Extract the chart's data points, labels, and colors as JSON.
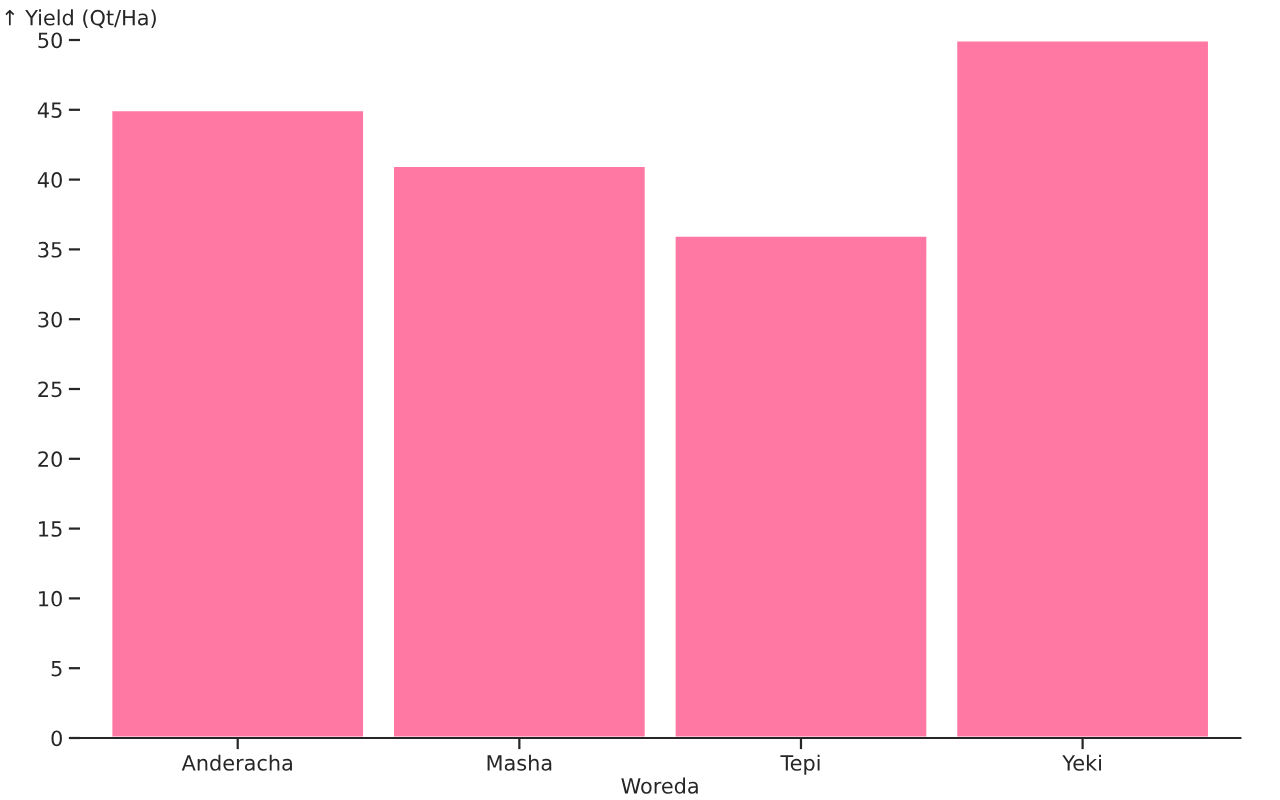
{
  "chart_data": {
    "type": "bar",
    "xlabel": "Woreda",
    "ylabel": "↑ Yield (Qt/Ha)",
    "categories": [
      "Anderacha",
      "Masha",
      "Tepi",
      "Yeki"
    ],
    "values": [
      45,
      41,
      36,
      50
    ],
    "color": "#ff77a3",
    "ylim": [
      0,
      50
    ],
    "yticks": [
      0,
      5,
      10,
      15,
      20,
      25,
      30,
      35,
      40,
      45,
      50
    ],
    "grid": false
  }
}
